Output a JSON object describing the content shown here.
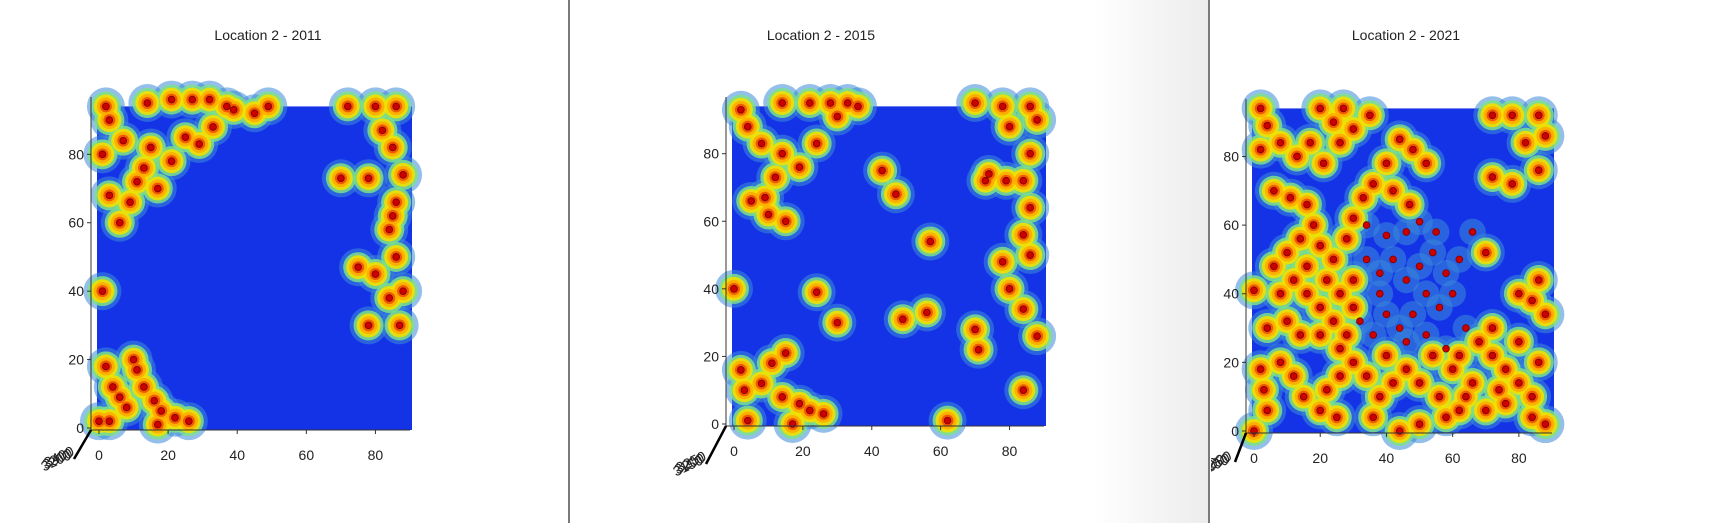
{
  "colors": {
    "surface": "#1433e6",
    "marker": "#cc0000",
    "axis": "#333333",
    "heat": [
      "#3a8ad8",
      "#7de088",
      "#f2e000",
      "#ffad00",
      "#f25a00",
      "#e02600"
    ]
  },
  "chart_data": [
    {
      "type": "scatter",
      "title": "Location 2 - 2011",
      "xlabel": "",
      "ylabel": "",
      "xlim": [
        0,
        90
      ],
      "ylim": [
        0,
        95
      ],
      "xticks": [
        "0",
        "20",
        "40",
        "60",
        "80"
      ],
      "yticks": [
        "0",
        "20",
        "40",
        "60",
        "80"
      ],
      "zticks": [
        "3200",
        "3300",
        "3400"
      ],
      "view": "3d-top-down",
      "colormap": "jet",
      "grid": false,
      "points": [
        [
          2,
          94
        ],
        [
          3,
          90
        ],
        [
          1,
          80
        ],
        [
          7,
          84
        ],
        [
          3,
          68
        ],
        [
          9,
          66
        ],
        [
          6,
          60
        ],
        [
          11,
          72
        ],
        [
          13,
          76
        ],
        [
          15,
          82
        ],
        [
          17,
          70
        ],
        [
          21,
          78
        ],
        [
          25,
          85
        ],
        [
          29,
          83
        ],
        [
          33,
          88
        ],
        [
          39,
          93
        ],
        [
          45,
          92
        ],
        [
          49,
          94
        ],
        [
          14,
          95
        ],
        [
          21,
          96
        ],
        [
          27,
          96
        ],
        [
          32,
          96
        ],
        [
          37,
          94
        ],
        [
          4,
          12
        ],
        [
          2,
          18
        ],
        [
          10,
          20
        ],
        [
          11,
          17
        ],
        [
          13,
          12
        ],
        [
          16,
          8
        ],
        [
          18,
          5
        ],
        [
          22,
          3
        ],
        [
          26,
          2
        ],
        [
          8,
          6
        ],
        [
          3,
          2
        ],
        [
          6,
          9
        ],
        [
          72,
          94
        ],
        [
          80,
          94
        ],
        [
          86,
          94
        ],
        [
          82,
          87
        ],
        [
          85,
          82
        ],
        [
          88,
          74
        ],
        [
          86,
          66
        ],
        [
          84,
          58
        ],
        [
          86,
          50
        ],
        [
          80,
          45
        ],
        [
          84,
          38
        ],
        [
          87,
          30
        ],
        [
          75,
          47
        ],
        [
          78,
          73
        ],
        [
          70,
          73
        ],
        [
          88,
          40
        ],
        [
          85,
          62
        ],
        [
          78,
          30
        ],
        [
          1,
          40
        ],
        [
          0,
          2
        ],
        [
          17,
          1
        ]
      ]
    },
    {
      "type": "scatter",
      "title": "Location 2 - 2015",
      "xlabel": "",
      "ylabel": "",
      "xlim": [
        0,
        90
      ],
      "ylim": [
        0,
        95
      ],
      "xticks": [
        "0",
        "20",
        "40",
        "60",
        "80"
      ],
      "yticks": [
        "0",
        "20",
        "40",
        "60",
        "80"
      ],
      "zticks": [
        "3150",
        "3200",
        "3250"
      ],
      "view": "3d-top-down",
      "colormap": "jet",
      "grid": false,
      "points": [
        [
          2,
          93
        ],
        [
          4,
          88
        ],
        [
          8,
          83
        ],
        [
          14,
          80
        ],
        [
          12,
          73
        ],
        [
          19,
          76
        ],
        [
          24,
          83
        ],
        [
          30,
          91
        ],
        [
          36,
          94
        ],
        [
          5,
          66
        ],
        [
          10,
          62
        ],
        [
          15,
          60
        ],
        [
          9,
          67
        ],
        [
          14,
          95
        ],
        [
          22,
          95
        ],
        [
          28,
          95
        ],
        [
          33,
          95
        ],
        [
          3,
          10
        ],
        [
          2,
          16
        ],
        [
          8,
          12
        ],
        [
          11,
          18
        ],
        [
          14,
          8
        ],
        [
          19,
          6
        ],
        [
          22,
          4
        ],
        [
          26,
          3
        ],
        [
          70,
          95
        ],
        [
          78,
          94
        ],
        [
          86,
          94
        ],
        [
          88,
          90
        ],
        [
          80,
          88
        ],
        [
          86,
          80
        ],
        [
          84,
          72
        ],
        [
          86,
          64
        ],
        [
          84,
          56
        ],
        [
          86,
          50
        ],
        [
          78,
          48
        ],
        [
          80,
          40
        ],
        [
          84,
          34
        ],
        [
          88,
          26
        ],
        [
          74,
          74
        ],
        [
          79,
          72
        ],
        [
          73,
          72
        ],
        [
          0,
          40
        ],
        [
          17,
          0
        ],
        [
          43,
          75
        ],
        [
          47,
          68
        ],
        [
          57,
          54
        ],
        [
          24,
          39
        ],
        [
          30,
          30
        ],
        [
          49,
          31
        ],
        [
          56,
          33
        ],
        [
          70,
          28
        ],
        [
          71,
          22
        ],
        [
          84,
          10
        ],
        [
          62,
          1
        ],
        [
          4,
          1
        ],
        [
          15,
          21
        ]
      ]
    },
    {
      "type": "scatter",
      "title": "Location 2 - 2021",
      "xlabel": "",
      "ylabel": "",
      "xlim": [
        0,
        90
      ],
      "ylim": [
        0,
        95
      ],
      "xticks": [
        "0",
        "20",
        "40",
        "60",
        "80"
      ],
      "yticks": [
        "0",
        "20",
        "40",
        "60",
        "80"
      ],
      "zticks": [
        "200",
        "250",
        "300"
      ],
      "view": "3d-top-down",
      "colormap": "jet",
      "grid": false,
      "points": [
        [
          2,
          94
        ],
        [
          4,
          89
        ],
        [
          8,
          84
        ],
        [
          13,
          80
        ],
        [
          17,
          84
        ],
        [
          21,
          78
        ],
        [
          26,
          84
        ],
        [
          30,
          88
        ],
        [
          35,
          92
        ],
        [
          6,
          70
        ],
        [
          11,
          68
        ],
        [
          16,
          66
        ],
        [
          2,
          82
        ],
        [
          24,
          90
        ],
        [
          27,
          94
        ],
        [
          20,
          94
        ],
        [
          3,
          12
        ],
        [
          2,
          18
        ],
        [
          8,
          20
        ],
        [
          12,
          16
        ],
        [
          15,
          10
        ],
        [
          20,
          6
        ],
        [
          25,
          4
        ],
        [
          4,
          6
        ],
        [
          72,
          92
        ],
        [
          78,
          92
        ],
        [
          86,
          92
        ],
        [
          88,
          86
        ],
        [
          82,
          84
        ],
        [
          86,
          76
        ],
        [
          72,
          74
        ],
        [
          78,
          72
        ],
        [
          84,
          38
        ],
        [
          88,
          34
        ],
        [
          80,
          40
        ],
        [
          86,
          44
        ],
        [
          0,
          41
        ],
        [
          0,
          0
        ],
        [
          44,
          85
        ],
        [
          48,
          82
        ],
        [
          52,
          78
        ],
        [
          40,
          78
        ],
        [
          36,
          72
        ],
        [
          33,
          68
        ],
        [
          42,
          70
        ],
        [
          47,
          66
        ],
        [
          50,
          61
        ],
        [
          55,
          58
        ],
        [
          46,
          58
        ],
        [
          40,
          57
        ],
        [
          34,
          60
        ],
        [
          30,
          62
        ],
        [
          28,
          56
        ],
        [
          24,
          50
        ],
        [
          20,
          54
        ],
        [
          16,
          48
        ],
        [
          22,
          44
        ],
        [
          26,
          40
        ],
        [
          30,
          44
        ],
        [
          34,
          50
        ],
        [
          38,
          46
        ],
        [
          42,
          50
        ],
        [
          46,
          44
        ],
        [
          50,
          48
        ],
        [
          54,
          52
        ],
        [
          58,
          46
        ],
        [
          62,
          50
        ],
        [
          60,
          40
        ],
        [
          56,
          36
        ],
        [
          52,
          40
        ],
        [
          48,
          34
        ],
        [
          44,
          30
        ],
        [
          40,
          34
        ],
        [
          36,
          28
        ],
        [
          32,
          32
        ],
        [
          28,
          28
        ],
        [
          24,
          32
        ],
        [
          20,
          36
        ],
        [
          16,
          40
        ],
        [
          12,
          44
        ],
        [
          8,
          40
        ],
        [
          6,
          48
        ],
        [
          10,
          52
        ],
        [
          14,
          56
        ],
        [
          18,
          60
        ],
        [
          66,
          58
        ],
        [
          70,
          52
        ],
        [
          64,
          30
        ],
        [
          68,
          26
        ],
        [
          72,
          22
        ],
        [
          76,
          18
        ],
        [
          80,
          14
        ],
        [
          84,
          10
        ],
        [
          76,
          8
        ],
        [
          70,
          6
        ],
        [
          62,
          6
        ],
        [
          56,
          10
        ],
        [
          50,
          14
        ],
        [
          46,
          18
        ],
        [
          42,
          14
        ],
        [
          38,
          10
        ],
        [
          34,
          16
        ],
        [
          30,
          20
        ],
        [
          26,
          16
        ],
        [
          22,
          12
        ],
        [
          54,
          22
        ],
        [
          60,
          18
        ],
        [
          66,
          14
        ],
        [
          72,
          30
        ],
        [
          80,
          26
        ],
        [
          86,
          20
        ],
        [
          84,
          4
        ],
        [
          58,
          4
        ],
        [
          50,
          2
        ],
        [
          44,
          0
        ],
        [
          36,
          4
        ],
        [
          40,
          22
        ],
        [
          46,
          26
        ],
        [
          52,
          28
        ],
        [
          58,
          24
        ],
        [
          62,
          22
        ],
        [
          64,
          10
        ],
        [
          74,
          12
        ],
        [
          4,
          30
        ],
        [
          10,
          32
        ],
        [
          14,
          28
        ],
        [
          38,
          40
        ],
        [
          30,
          36
        ],
        [
          26,
          24
        ],
        [
          20,
          28
        ],
        [
          88,
          2
        ]
      ]
    }
  ]
}
